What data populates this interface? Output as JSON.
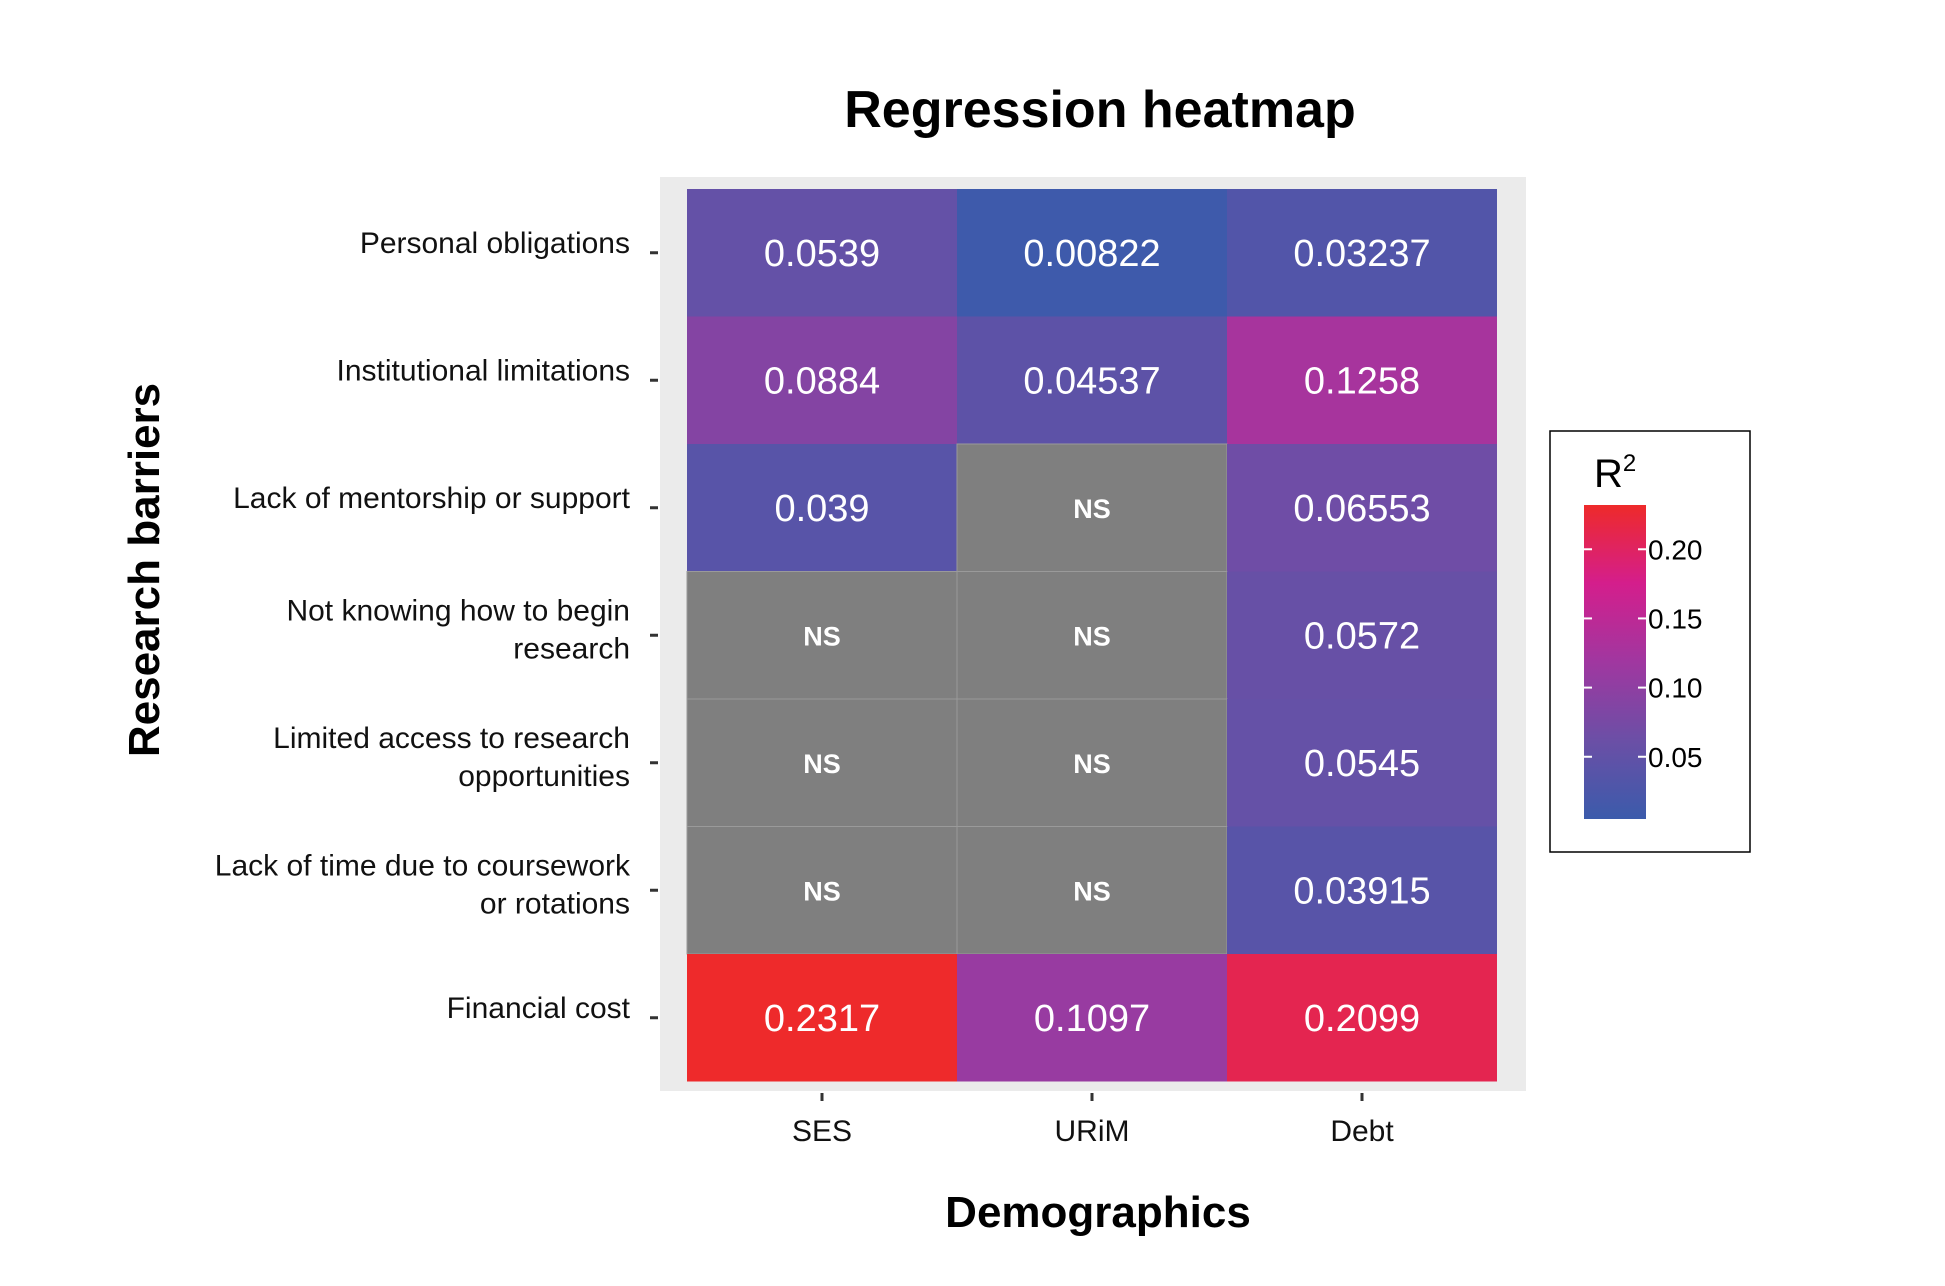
{
  "chart_data": {
    "type": "heatmap",
    "title": "Regression heatmap",
    "xlabel": "Demographics",
    "ylabel": "Research barriers",
    "columns": [
      "SES",
      "URiM",
      "Debt"
    ],
    "rows": [
      [
        "Personal obligations"
      ],
      [
        "Institutional limitations"
      ],
      [
        "Lack of mentorship or support"
      ],
      [
        "Not knowing how to begin",
        "research"
      ],
      [
        "Limited access to research",
        "opportunities"
      ],
      [
        "Lack of time due to coursework",
        "or rotations"
      ],
      [
        "Financial cost"
      ]
    ],
    "values": [
      [
        "0.0539",
        "0.00822",
        "0.03237"
      ],
      [
        "0.0884",
        "0.04537",
        "0.1258"
      ],
      [
        "0.039",
        "NS",
        "0.06553"
      ],
      [
        "NS",
        "NS",
        "0.0572"
      ],
      [
        "NS",
        "NS",
        "0.0545"
      ],
      [
        "NS",
        "NS",
        "0.03915"
      ],
      [
        "0.2317",
        "0.1097",
        "0.2099"
      ]
    ],
    "ns_label": "NS",
    "legend": {
      "title": "R",
      "title_superscript": "2",
      "ticks": [
        "0.20",
        "0.15",
        "0.10",
        "0.05"
      ],
      "tick_values": [
        0.2,
        0.15,
        0.1,
        0.05
      ],
      "range": [
        0.005,
        0.232
      ],
      "colors": [
        "#3b5bab",
        "#6b4fa6",
        "#a037a0",
        "#d41e8c",
        "#ee2a2a"
      ]
    },
    "colors": {
      "ns": "#7f7f7f",
      "panel": "#ebebeb",
      "grid": "#ffffff"
    }
  }
}
